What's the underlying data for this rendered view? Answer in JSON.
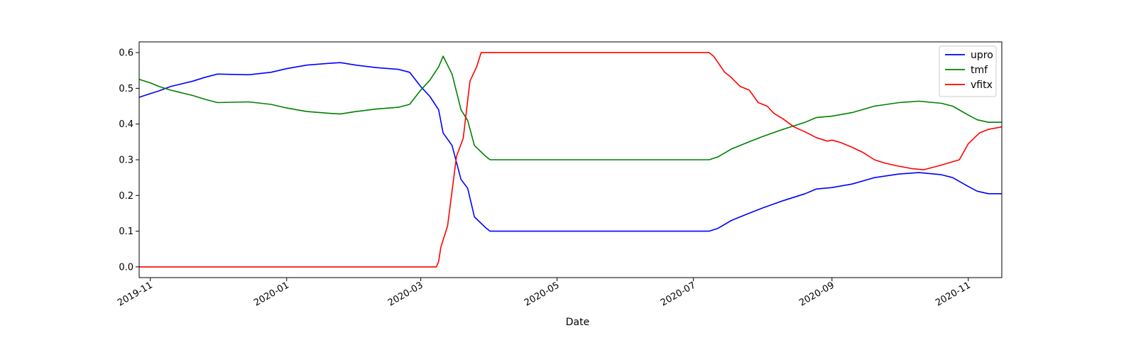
{
  "chart_data": {
    "type": "line",
    "xlabel": "Date",
    "ylabel": "",
    "title": "",
    "x_range": [
      "2019-10-27",
      "2020-11-16"
    ],
    "ylim": [
      -0.03,
      0.63
    ],
    "x_ticks": [
      "2019-11-01",
      "2020-01-01",
      "2020-03-01",
      "2020-05-01",
      "2020-07-01",
      "2020-09-01",
      "2020-11-01"
    ],
    "x_tick_labels": [
      "2019-11",
      "2020-01",
      "2020-03",
      "2020-05",
      "2020-07",
      "2020-09",
      "2020-11"
    ],
    "y_ticks": [
      0.0,
      0.1,
      0.2,
      0.3,
      0.4,
      0.5,
      0.6
    ],
    "y_tick_labels": [
      "0.0",
      "0.1",
      "0.2",
      "0.3",
      "0.4",
      "0.5",
      "0.6"
    ],
    "grid": false,
    "legend_position": "top-right",
    "series": [
      {
        "name": "upro",
        "color": "#0000ff",
        "points": [
          [
            "2019-10-27",
            0.475
          ],
          [
            "2019-11-01",
            0.485
          ],
          [
            "2019-11-05",
            0.493
          ],
          [
            "2019-11-10",
            0.505
          ],
          [
            "2019-11-20",
            0.52
          ],
          [
            "2019-11-25",
            0.53
          ],
          [
            "2019-12-01",
            0.54
          ],
          [
            "2019-12-15",
            0.538
          ],
          [
            "2019-12-25",
            0.545
          ],
          [
            "2020-01-01",
            0.555
          ],
          [
            "2020-01-10",
            0.565
          ],
          [
            "2020-01-20",
            0.57
          ],
          [
            "2020-01-25",
            0.572
          ],
          [
            "2020-02-01",
            0.565
          ],
          [
            "2020-02-10",
            0.558
          ],
          [
            "2020-02-20",
            0.553
          ],
          [
            "2020-02-25",
            0.545
          ],
          [
            "2020-03-01",
            0.505
          ],
          [
            "2020-03-05",
            0.478
          ],
          [
            "2020-03-09",
            0.44
          ],
          [
            "2020-03-11",
            0.375
          ],
          [
            "2020-03-15",
            0.34
          ],
          [
            "2020-03-19",
            0.245
          ],
          [
            "2020-03-22",
            0.22
          ],
          [
            "2020-03-25",
            0.14
          ],
          [
            "2020-03-30",
            0.11
          ],
          [
            "2020-04-01",
            0.1
          ],
          [
            "2020-04-15",
            0.1
          ],
          [
            "2020-05-01",
            0.1
          ],
          [
            "2020-06-01",
            0.1
          ],
          [
            "2020-07-01",
            0.1
          ],
          [
            "2020-07-08",
            0.1
          ],
          [
            "2020-07-12",
            0.108
          ],
          [
            "2020-07-18",
            0.13
          ],
          [
            "2020-07-25",
            0.148
          ],
          [
            "2020-08-01",
            0.165
          ],
          [
            "2020-08-10",
            0.185
          ],
          [
            "2020-08-20",
            0.205
          ],
          [
            "2020-08-25",
            0.218
          ],
          [
            "2020-09-01",
            0.222
          ],
          [
            "2020-09-10",
            0.232
          ],
          [
            "2020-09-20",
            0.25
          ],
          [
            "2020-10-01",
            0.26
          ],
          [
            "2020-10-10",
            0.264
          ],
          [
            "2020-10-20",
            0.258
          ],
          [
            "2020-10-25",
            0.25
          ],
          [
            "2020-11-01",
            0.225
          ],
          [
            "2020-11-05",
            0.212
          ],
          [
            "2020-11-10",
            0.205
          ],
          [
            "2020-11-16",
            0.205
          ]
        ]
      },
      {
        "name": "tmf",
        "color": "#008000",
        "points": [
          [
            "2019-10-27",
            0.525
          ],
          [
            "2019-11-01",
            0.515
          ],
          [
            "2019-11-05",
            0.505
          ],
          [
            "2019-11-10",
            0.495
          ],
          [
            "2019-11-20",
            0.48
          ],
          [
            "2019-11-25",
            0.47
          ],
          [
            "2019-12-01",
            0.46
          ],
          [
            "2019-12-15",
            0.462
          ],
          [
            "2019-12-25",
            0.455
          ],
          [
            "2020-01-01",
            0.445
          ],
          [
            "2020-01-10",
            0.435
          ],
          [
            "2020-01-20",
            0.43
          ],
          [
            "2020-01-25",
            0.428
          ],
          [
            "2020-02-01",
            0.435
          ],
          [
            "2020-02-10",
            0.442
          ],
          [
            "2020-02-20",
            0.447
          ],
          [
            "2020-02-25",
            0.455
          ],
          [
            "2020-03-01",
            0.495
          ],
          [
            "2020-03-05",
            0.522
          ],
          [
            "2020-03-09",
            0.56
          ],
          [
            "2020-03-11",
            0.59
          ],
          [
            "2020-03-15",
            0.54
          ],
          [
            "2020-03-19",
            0.44
          ],
          [
            "2020-03-22",
            0.41
          ],
          [
            "2020-03-25",
            0.34
          ],
          [
            "2020-03-30",
            0.31
          ],
          [
            "2020-04-01",
            0.3
          ],
          [
            "2020-04-15",
            0.3
          ],
          [
            "2020-05-01",
            0.3
          ],
          [
            "2020-06-01",
            0.3
          ],
          [
            "2020-07-01",
            0.3
          ],
          [
            "2020-07-08",
            0.3
          ],
          [
            "2020-07-12",
            0.308
          ],
          [
            "2020-07-18",
            0.33
          ],
          [
            "2020-07-25",
            0.348
          ],
          [
            "2020-08-01",
            0.365
          ],
          [
            "2020-08-10",
            0.385
          ],
          [
            "2020-08-20",
            0.405
          ],
          [
            "2020-08-25",
            0.418
          ],
          [
            "2020-09-01",
            0.422
          ],
          [
            "2020-09-10",
            0.432
          ],
          [
            "2020-09-20",
            0.45
          ],
          [
            "2020-10-01",
            0.46
          ],
          [
            "2020-10-10",
            0.464
          ],
          [
            "2020-10-20",
            0.458
          ],
          [
            "2020-10-25",
            0.45
          ],
          [
            "2020-11-01",
            0.425
          ],
          [
            "2020-11-05",
            0.412
          ],
          [
            "2020-11-10",
            0.405
          ],
          [
            "2020-11-16",
            0.405
          ]
        ]
      },
      {
        "name": "vfitx",
        "color": "#ff0000",
        "points": [
          [
            "2019-10-27",
            0.0
          ],
          [
            "2019-12-01",
            0.0
          ],
          [
            "2020-01-01",
            0.0
          ],
          [
            "2020-02-01",
            0.0
          ],
          [
            "2020-03-08",
            0.0
          ],
          [
            "2020-03-09",
            0.015
          ],
          [
            "2020-03-10",
            0.055
          ],
          [
            "2020-03-13",
            0.115
          ],
          [
            "2020-03-17",
            0.31
          ],
          [
            "2020-03-20",
            0.36
          ],
          [
            "2020-03-23",
            0.52
          ],
          [
            "2020-03-26",
            0.56
          ],
          [
            "2020-03-28",
            0.6
          ],
          [
            "2020-04-15",
            0.6
          ],
          [
            "2020-05-01",
            0.6
          ],
          [
            "2020-06-01",
            0.6
          ],
          [
            "2020-07-01",
            0.6
          ],
          [
            "2020-07-08",
            0.6
          ],
          [
            "2020-07-10",
            0.59
          ],
          [
            "2020-07-15",
            0.545
          ],
          [
            "2020-07-18",
            0.53
          ],
          [
            "2020-07-22",
            0.505
          ],
          [
            "2020-07-26",
            0.495
          ],
          [
            "2020-07-30",
            0.46
          ],
          [
            "2020-08-03",
            0.45
          ],
          [
            "2020-08-06",
            0.43
          ],
          [
            "2020-08-10",
            0.415
          ],
          [
            "2020-08-15",
            0.392
          ],
          [
            "2020-08-20",
            0.378
          ],
          [
            "2020-08-25",
            0.362
          ],
          [
            "2020-08-30",
            0.352
          ],
          [
            "2020-09-01",
            0.355
          ],
          [
            "2020-09-05",
            0.348
          ],
          [
            "2020-09-10",
            0.335
          ],
          [
            "2020-09-15",
            0.32
          ],
          [
            "2020-09-20",
            0.3
          ],
          [
            "2020-09-25",
            0.29
          ],
          [
            "2020-10-01",
            0.282
          ],
          [
            "2020-10-07",
            0.275
          ],
          [
            "2020-10-12",
            0.272
          ],
          [
            "2020-10-20",
            0.285
          ],
          [
            "2020-10-28",
            0.3
          ],
          [
            "2020-11-01",
            0.345
          ],
          [
            "2020-11-06",
            0.375
          ],
          [
            "2020-11-10",
            0.385
          ],
          [
            "2020-11-16",
            0.392
          ]
        ]
      }
    ]
  }
}
